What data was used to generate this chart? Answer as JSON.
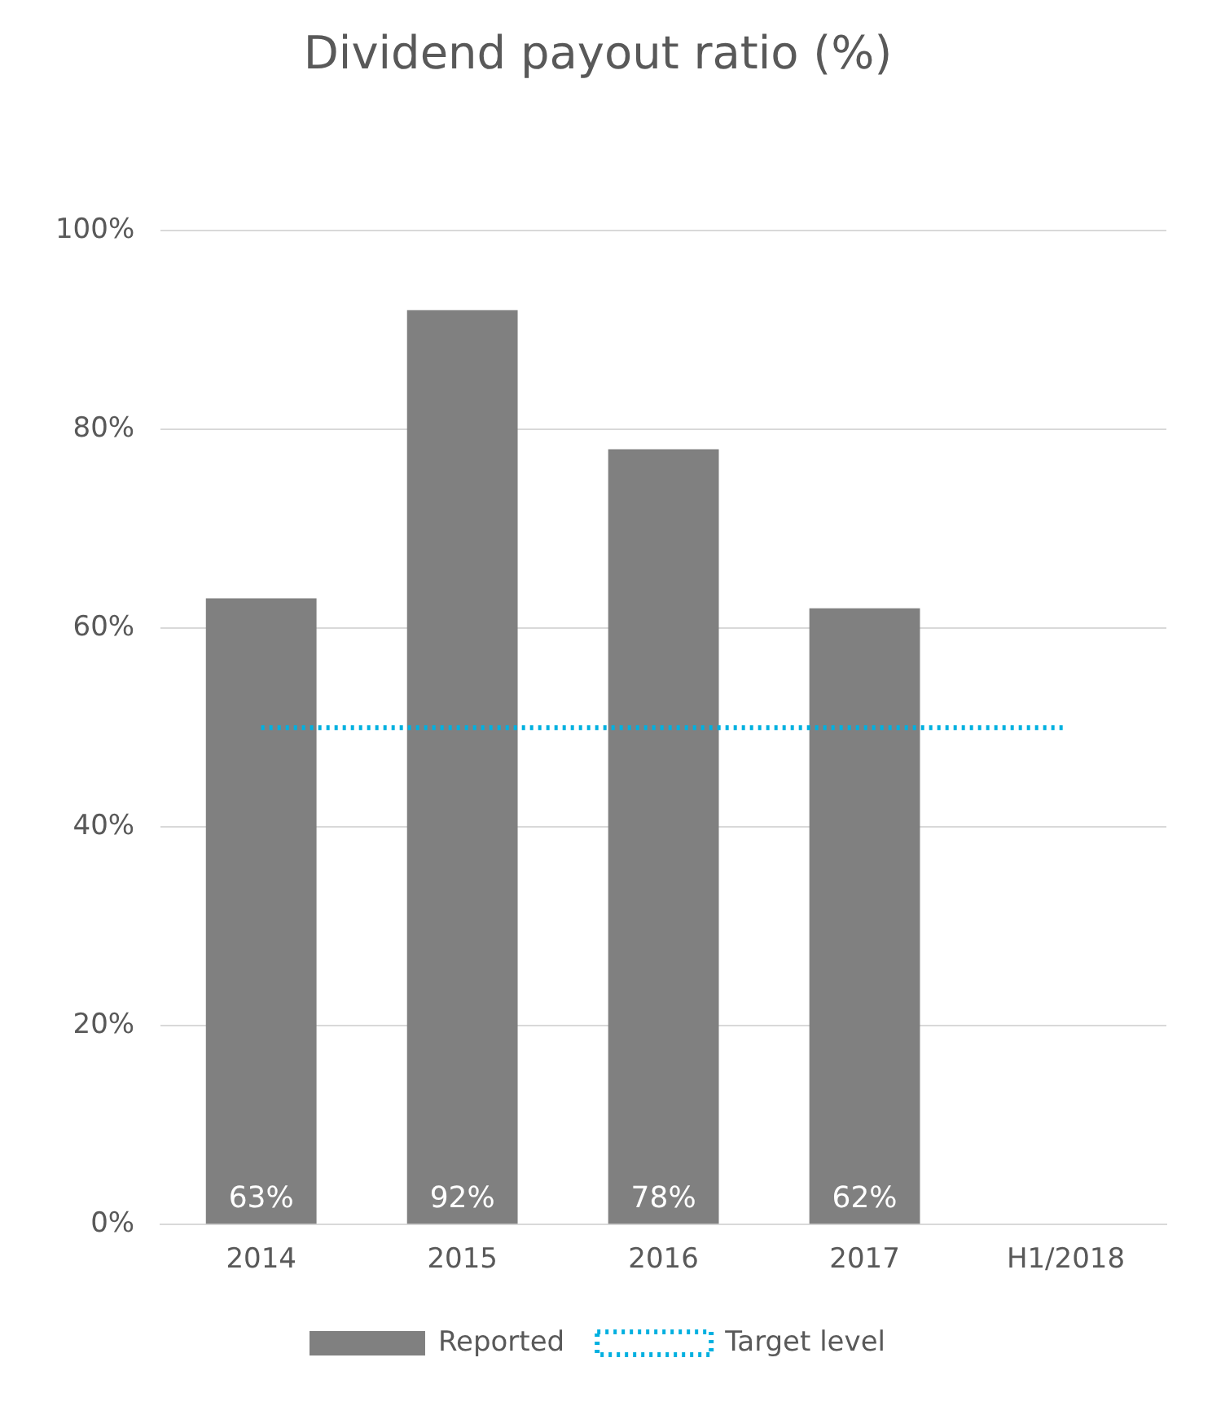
{
  "chart_data": {
    "type": "bar",
    "title": "Dividend payout ratio (%)",
    "categories": [
      "2014",
      "2015",
      "2016",
      "2017",
      "H1/2018"
    ],
    "series": [
      {
        "name": "Reported",
        "color": "#808080",
        "values": [
          63,
          92,
          78,
          62,
          null
        ],
        "value_labels": [
          "63%",
          "92%",
          "78%",
          "62%",
          null
        ]
      },
      {
        "name": "Target level",
        "type": "line",
        "color": "#00b0e0",
        "line_style": "dotted",
        "marker": "none",
        "values": [
          50,
          50,
          50,
          50,
          50
        ]
      }
    ],
    "ylim": [
      0,
      100
    ],
    "yticks": [
      {
        "value": 0,
        "label": "0%"
      },
      {
        "value": 20,
        "label": "20%"
      },
      {
        "value": 40,
        "label": "40%"
      },
      {
        "value": 60,
        "label": "60%"
      },
      {
        "value": 80,
        "label": "80%"
      },
      {
        "value": 100,
        "label": "100%"
      }
    ],
    "grid": "y",
    "legend": "bottom"
  }
}
